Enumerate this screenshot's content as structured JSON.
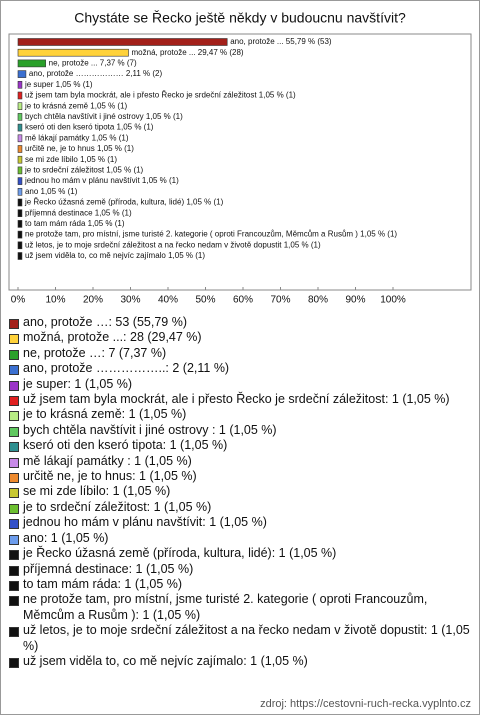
{
  "chart_data": {
    "type": "bar",
    "orientation": "horizontal",
    "title": "Chystáte se Řecko ještě někdy v budoucnu navštívit?",
    "values": [
      55.79,
      29.47,
      7.37,
      2.11,
      1.05,
      1.05,
      1.05,
      1.05,
      1.05,
      1.05,
      1.05,
      1.05,
      1.05,
      1.05,
      1.05,
      1.05,
      1.05,
      1.05,
      1.05,
      1.05,
      1.05
    ],
    "value_labels": [
      "ano, protože ... 55,79 % (53)",
      "možná, protože ... 29,47 % (28)",
      "ne, protože ... 7,37 % (7)",
      "ano, protože ……………… 2,11 % (2)",
      "je super 1,05 % (1)",
      "už jsem tam byla mockrát, ale i přesto Řecko je srdeční záležitost 1,05 % (1)",
      "je to krásná země 1,05 % (1)",
      "bych chtěla navštívit i jiné ostrovy  1,05 % (1)",
      "kseró oti den kseró tipota 1,05 % (1)",
      "mě lákají památky  1,05 % (1)",
      "určitě ne, je to hnus 1,05 % (1)",
      "se mi zde líbilo 1,05 % (1)",
      "je to srdeční záležitost 1,05 % (1)",
      "jednou ho mám v plánu navštívit 1,05 % (1)",
      "ano 1,05 % (1)",
      "je Řecko úžasná země (příroda, kultura, lidé) 1,05 % (1)",
      "příjemná destinace 1,05 % (1)",
      "to tam mám ráda 1,05 % (1)",
      "ne protože tam, pro místní, jsme turisté 2. kategorie ( oproti Francouzům, Měmcům a Rusům ) 1,05 % (1)",
      "už letos, je to moje srdeční záležitost a na řecko nedam v životě dopustit 1,05 % (1)",
      "už jsem viděla to, co mě nejvíc zajímalo 1,05 % (1)"
    ],
    "colors": [
      "#a3201a",
      "#ffd23a",
      "#2aa02a",
      "#3a6fd0",
      "#9b34c8",
      "#e02020",
      "#b8ec84",
      "#5fc85f",
      "#2e9090",
      "#c88ae8",
      "#ee8a2e",
      "#c8c832",
      "#6cbf30",
      "#3350c8",
      "#6c9cec",
      "#111111",
      "#111111",
      "#111111",
      "#111111",
      "#111111",
      "#111111"
    ],
    "legend_labels": [
      "ano, protože …: 53 (55,79 %)",
      "možná, protože ...: 28 (29,47 %)",
      "ne, protože …: 7 (7,37 %)",
      "ano, protože ……………..: 2 (2,11 %)",
      "je super: 1 (1,05 %)",
      "už jsem tam byla mockrát, ale i přesto Řecko je srdeční záležitost: 1 (1,05 %)",
      "je to krásná země: 1 (1,05 %)",
      "bych chtěla navštívit i jiné ostrovy : 1 (1,05 %)",
      "kseró oti den kseró tipota: 1 (1,05 %)",
      "mě lákají památky : 1 (1,05 %)",
      "určitě ne, je to hnus: 1 (1,05 %)",
      "se mi zde líbilo: 1 (1,05 %)",
      "je to srdeční záležitost: 1 (1,05 %)",
      "jednou ho mám v plánu navštívit: 1 (1,05 %)",
      "ano: 1 (1,05 %)",
      "je Řecko úžasná země (příroda, kultura, lidé): 1 (1,05 %)",
      "příjemná destinace: 1 (1,05 %)",
      "to tam mám ráda: 1 (1,05 %)",
      "ne protože tam, pro místní, jsme turisté 2. kategorie ( oproti Francouzům, Měmcům a Rusům ): 1 (1,05 %)",
      "už letos, je to moje srdeční záležitost a na řecko nedam v životě dopustit: 1 (1,05 %)",
      "už jsem viděla to, co mě nejvíc zajímalo: 1 (1,05 %)"
    ],
    "xlim": [
      0,
      100
    ],
    "xticks": [
      {
        "value": 0,
        "label": "0%"
      },
      {
        "value": 10,
        "label": "10%"
      },
      {
        "value": 20,
        "label": "20%"
      },
      {
        "value": 30,
        "label": "30%"
      },
      {
        "value": 40,
        "label": "40%"
      },
      {
        "value": 50,
        "label": "50%"
      },
      {
        "value": 60,
        "label": "60%"
      },
      {
        "value": 70,
        "label": "70%"
      },
      {
        "value": 80,
        "label": "80%"
      },
      {
        "value": 90,
        "label": "90%"
      },
      {
        "value": 100,
        "label": "100%"
      }
    ],
    "source": "zdroj: https://cestovni-ruch-recka.vyplnto.cz"
  }
}
